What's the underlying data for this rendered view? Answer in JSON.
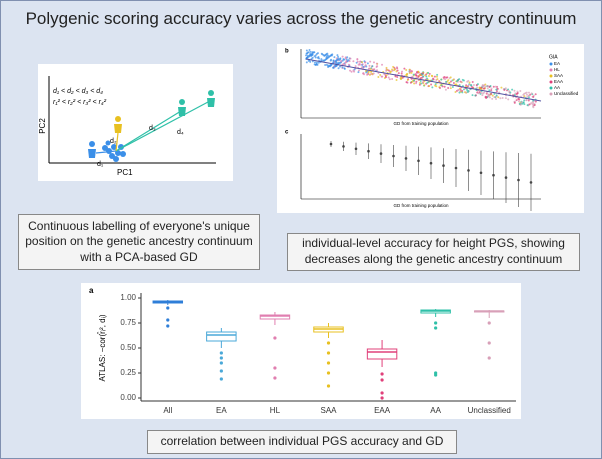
{
  "title": "Polygenic scoring accuracy varies across the genetic ancestry continuum",
  "pca_figure": {
    "x_label": "PC1",
    "y_label": "PC2",
    "distance_order": "d₁ < d₂ < d₃ < d₄",
    "accuracy_order": "r₁² < r₂² < r₃² < r₄²",
    "d1": "d₁",
    "d2": "d₂",
    "d3": "d₃",
    "d4": "d₄"
  },
  "accuracy_figure": {
    "panel_b": "b",
    "panel_c": "c",
    "x_label_b": "GD from training population",
    "x_label_c": "GD from training population",
    "legend_title": "GIA",
    "legend": [
      "EA",
      "HL",
      "SAA",
      "EAA",
      "AA",
      "Unclassified"
    ]
  },
  "captions": [
    "Continuous labelling of everyone's unique position on the genetic ancestry continuum with a PCA-based GD",
    "individual-level accuracy for height PGS, showing decreases along the genetic ancestry continuum",
    "correlation between individual PGS accuracy and GD"
  ],
  "chart_data": {
    "type": "box",
    "panel_label": "a",
    "ylabel": "ATLAS: −cor(r̂ᵢ², dᵢ)",
    "categories": [
      "All",
      "EA",
      "HL",
      "SAA",
      "EAA",
      "AA",
      "Unclassified"
    ],
    "colors": [
      "#2f7fd8",
      "#4aa8d8",
      "#e07fb0",
      "#e8c020",
      "#e0407a",
      "#2fc0a8",
      "#d8a0b8"
    ],
    "boxes": [
      {
        "whislo": 0.93,
        "q1": 0.95,
        "med": 0.96,
        "q3": 0.97,
        "whishi": 0.98,
        "fliers": [
          0.9,
          0.78,
          0.72
        ]
      },
      {
        "whislo": 0.5,
        "q1": 0.57,
        "med": 0.63,
        "q3": 0.66,
        "whishi": 0.7,
        "fliers": [
          0.45,
          0.4,
          0.35,
          0.27,
          0.19
        ]
      },
      {
        "whislo": 0.73,
        "q1": 0.79,
        "med": 0.82,
        "q3": 0.83,
        "whishi": 0.86,
        "fliers": [
          0.6,
          0.3,
          0.2
        ]
      },
      {
        "whislo": 0.6,
        "q1": 0.66,
        "med": 0.69,
        "q3": 0.71,
        "whishi": 0.75,
        "fliers": [
          0.55,
          0.45,
          0.35,
          0.25,
          0.12
        ]
      },
      {
        "whislo": 0.31,
        "q1": 0.39,
        "med": 0.46,
        "q3": 0.49,
        "whishi": 0.58,
        "fliers": [
          0.24,
          0.18,
          0.05,
          0.0
        ]
      },
      {
        "whislo": 0.81,
        "q1": 0.85,
        "med": 0.87,
        "q3": 0.88,
        "whishi": 0.89,
        "fliers": [
          0.75,
          0.7,
          0.25,
          0.23
        ]
      },
      {
        "whislo": 0.8,
        "q1": 0.86,
        "med": 0.87,
        "q3": 0.87,
        "whishi": 0.88,
        "fliers": [
          0.75,
          0.55,
          0.4
        ]
      }
    ],
    "ylim": [
      -0.03,
      1.05
    ],
    "yticks": [
      {
        "value": 0,
        "label": "0.00"
      },
      {
        "value": 0.25,
        "label": "0.25"
      },
      {
        "value": 0.5,
        "label": "0.50"
      },
      {
        "value": 0.75,
        "label": "0.75"
      },
      {
        "value": 1,
        "label": "1.00"
      }
    ]
  }
}
